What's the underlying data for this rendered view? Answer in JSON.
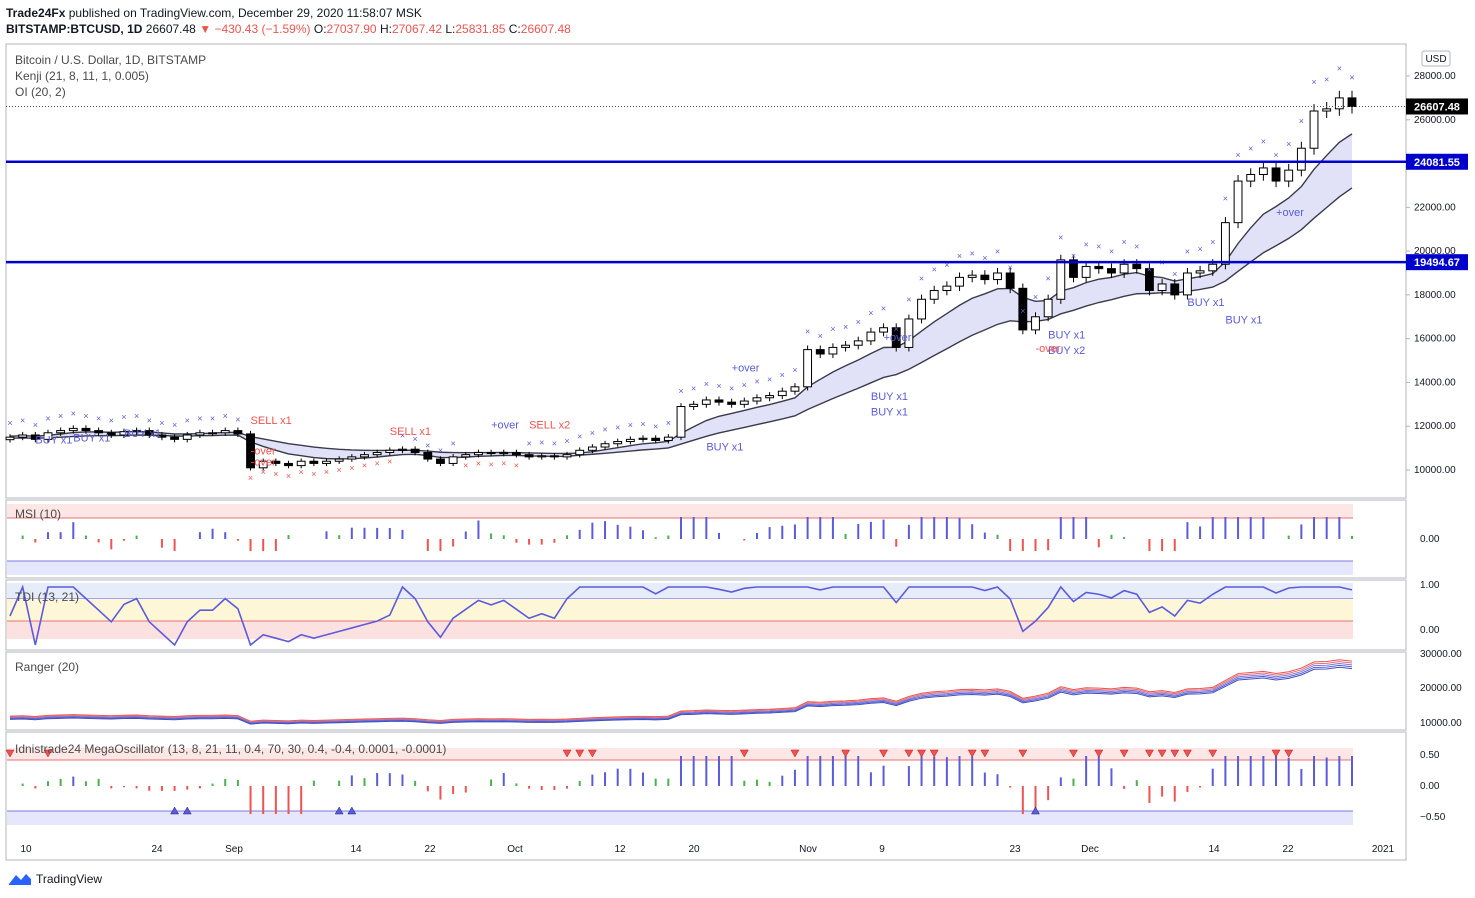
{
  "header": {
    "publisher": "Trade24Fx",
    "published_text": "published on TradingView.com, December 29, 2020 11:58:07 MSK",
    "symbol": "BITSTAMP:BTCUSD, 1D",
    "last": "26607.48",
    "change": "−430.43 (−1.59%)",
    "o_label": "O:",
    "o": "27037.90",
    "h_label": "H:",
    "h": "27067.42",
    "l_label": "L:",
    "l": "25831.85",
    "c_label": "C:",
    "c": "26607.48"
  },
  "legends": {
    "main_title": "Bitcoin / U.S. Dollar, 1D, BITSTAMP",
    "kenji": "Kenji (21, 8, 11, 1, 0.005)",
    "oi": "OI (20, 2)",
    "msi": "MSI (10)",
    "tdi": "TDI (13, 21)",
    "ranger": "Ranger (20)",
    "mega": "Idnistrade24 MegaOscillator (13, 8, 21, 11, 0.4, 70, 30, 0.4, -0.4, 0.0001, -0.0001)"
  },
  "currency_badge": "USD",
  "price_labels": {
    "last": "26607.48",
    "level_high": "24081.55",
    "level_low": "19494.67"
  },
  "axes": {
    "price_ticks": [
      "28000.00",
      "26000.00",
      "24000.00",
      "22000.00",
      "20000.00",
      "18000.00",
      "16000.00",
      "14000.00",
      "12000.00",
      "10000.00"
    ],
    "msi_ticks": [
      "0.00"
    ],
    "tdi_ticks": [
      "1.00",
      "0.00"
    ],
    "ranger_ticks": [
      "30000.00",
      "20000.00",
      "10000.00"
    ],
    "mega_ticks": [
      "0.50",
      "0.00",
      "−0.50"
    ],
    "x_ticks": [
      "10",
      "24",
      "Sep",
      "14",
      "22",
      "Oct",
      "12",
      "20",
      "Nov",
      "9",
      "23",
      "Dec",
      "14",
      "22",
      "2021"
    ]
  },
  "signals": [
    "BUY x1",
    "BUY x1",
    "BUY x1",
    "SELL x1",
    "-over",
    "-over",
    "SELL x1",
    "+over",
    "SELL x2",
    "BUY x1",
    "+over",
    "BUY x1",
    "+over",
    "BUY x1",
    "BUY x2",
    "-over",
    "BUY x1",
    "BUY x1",
    "BUY x1",
    "+over"
  ],
  "colors": {
    "up": "#ffffff",
    "down": "#000000",
    "level": "#0000cc",
    "cross_buy": "#5b5bdb",
    "cross_sell": "#ef5350",
    "band": "#c8c8f0"
  },
  "chart_data": {
    "type": "candlestick",
    "title": "Bitcoin / U.S. Dollar, 1D, BITSTAMP",
    "x_range": [
      "2020-08-06",
      "2020-12-29"
    ],
    "ylim": [
      9000,
      29000
    ],
    "horizontal_levels": [
      24081.55,
      19494.67
    ],
    "last_close": 26607.48,
    "series": [
      {
        "name": "BTCUSD close (approx.)",
        "values": [
          11500,
          11600,
          11400,
          11700,
          11800,
          11900,
          11800,
          11700,
          11600,
          11750,
          11800,
          11600,
          11500,
          11400,
          11600,
          11700,
          11700,
          11800,
          11650,
          10100,
          10400,
          10300,
          10200,
          10400,
          10300,
          10400,
          10500,
          10600,
          10700,
          10800,
          10900,
          10950,
          10800,
          10500,
          10300,
          10600,
          10700,
          10800,
          10750,
          10800,
          10700,
          10600,
          10650,
          10600,
          10700,
          10900,
          11050,
          11200,
          11300,
          11400,
          11450,
          11350,
          11500,
          12900,
          13000,
          13200,
          13100,
          13000,
          13150,
          13300,
          13400,
          13600,
          13800,
          15500,
          15300,
          15600,
          15700,
          15900,
          16300,
          16500,
          15600,
          16900,
          17800,
          18200,
          18400,
          18800,
          18900,
          18700,
          19000,
          18300,
          16400,
          17000,
          17800,
          19600,
          18800,
          19300,
          19200,
          19000,
          19400,
          19200,
          18200,
          18500,
          18000,
          19000,
          19100,
          19400,
          21300,
          23200,
          23500,
          23800,
          23200,
          23700,
          24700,
          26400,
          26500,
          27000,
          26607
        ]
      }
    ]
  }
}
